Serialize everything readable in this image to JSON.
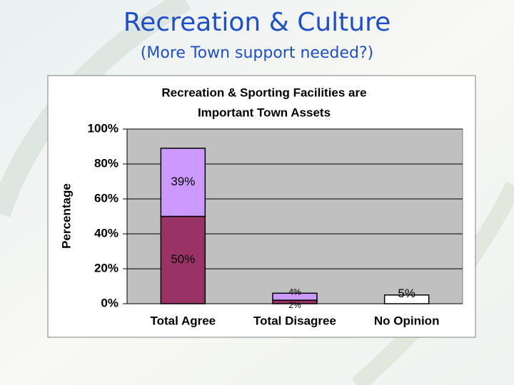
{
  "slide": {
    "title": "Recreation & Culture",
    "subtitle": "(More Town support needed?)"
  },
  "chart_data": {
    "type": "stacked_bar",
    "title": [
      "Recreation & Sporting Facilities are",
      "Important Town Assets"
    ],
    "y_label": "Percentage",
    "categories": [
      "Total Agree",
      "Total Disagree",
      "No Opinion"
    ],
    "series": [
      {
        "color": "#993366",
        "values": [
          50,
          2,
          null
        ],
        "value_labels": [
          "50%",
          "2%",
          null
        ]
      },
      {
        "color": "#cc99ff",
        "values": [
          39,
          4,
          null
        ],
        "value_labels": [
          "39%",
          "4%",
          null
        ]
      },
      {
        "color": "#ffffff",
        "values": [
          null,
          null,
          5
        ],
        "value_labels": [
          null,
          null,
          "5%"
        ]
      }
    ],
    "ylim": [
      0,
      100
    ],
    "yticks": [
      {
        "value": 0,
        "label": "0%"
      },
      {
        "value": 20,
        "label": "20%"
      },
      {
        "value": 40,
        "label": "40%"
      },
      {
        "value": 60,
        "label": "60%"
      },
      {
        "value": 80,
        "label": "80%"
      },
      {
        "value": 100,
        "label": "100%"
      }
    ],
    "grid": true,
    "plot_background": "#c0c0c0"
  }
}
